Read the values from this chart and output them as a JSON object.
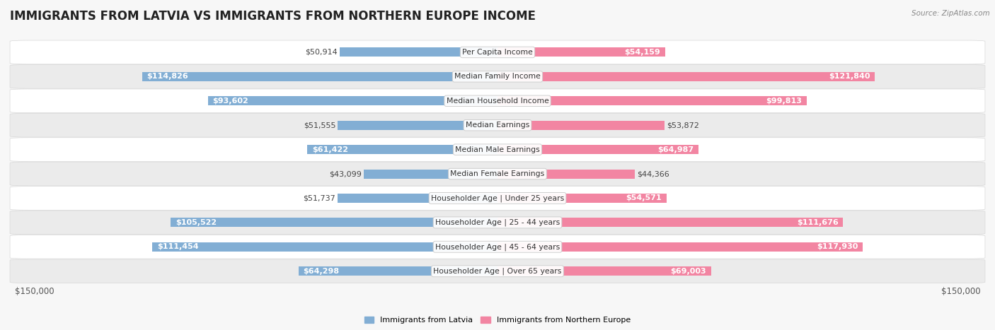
{
  "title": "IMMIGRANTS FROM LATVIA VS IMMIGRANTS FROM NORTHERN EUROPE INCOME",
  "source": "Source: ZipAtlas.com",
  "categories": [
    "Per Capita Income",
    "Median Family Income",
    "Median Household Income",
    "Median Earnings",
    "Median Male Earnings",
    "Median Female Earnings",
    "Householder Age | Under 25 years",
    "Householder Age | 25 - 44 years",
    "Householder Age | 45 - 64 years",
    "Householder Age | Over 65 years"
  ],
  "latvia_values": [
    50914,
    114826,
    93602,
    51555,
    61422,
    43099,
    51737,
    105522,
    111454,
    64298
  ],
  "northern_values": [
    54159,
    121840,
    99813,
    53872,
    64987,
    44366,
    54571,
    111676,
    117930,
    69003
  ],
  "latvia_labels": [
    "$50,914",
    "$114,826",
    "$93,602",
    "$51,555",
    "$61,422",
    "$43,099",
    "$51,737",
    "$105,522",
    "$111,454",
    "$64,298"
  ],
  "northern_labels": [
    "$54,159",
    "$121,840",
    "$99,813",
    "$53,872",
    "$64,987",
    "$44,366",
    "$54,571",
    "$111,676",
    "$117,930",
    "$69,003"
  ],
  "latvia_color": "#82aed4",
  "northern_color": "#f285a2",
  "bar_height": 0.38,
  "xlim": 150000,
  "background_color": "#f7f7f7",
  "row_bg_even": "#ffffff",
  "row_bg_odd": "#ebebeb",
  "row_border": "#d8d8d8",
  "legend_latvia": "Immigrants from Latvia",
  "legend_northern": "Immigrants from Northern Europe",
  "title_fontsize": 12,
  "label_fontsize": 8.0,
  "category_fontsize": 7.8,
  "axis_fontsize": 8.5,
  "inside_label_threshold": 0.36
}
